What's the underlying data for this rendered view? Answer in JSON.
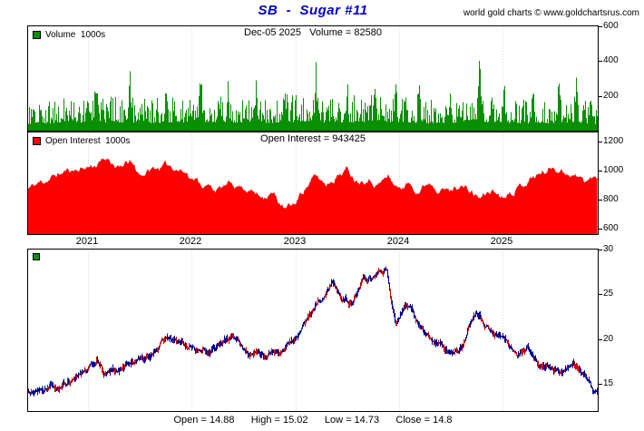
{
  "header": {
    "title": "SB  -  Sugar #11",
    "credit": "world gold charts © www.goldchartsrus.com"
  },
  "panels": {
    "volume": {
      "legend": "Volume  1000s",
      "header": "Dec-05 2025   Volume = 82580"
    },
    "open_interest": {
      "legend": "Open Interest  1000s",
      "header": "Open Interest = 943425"
    },
    "price": {
      "footer": "Open = 14.88      High = 15.02      Low = 14.73      Close = 14.8"
    }
  },
  "chart_data": [
    {
      "type": "bar",
      "name": "Volume",
      "unit": "1000s",
      "color": "#089000",
      "ylim": [
        0,
        600
      ],
      "yticks": [
        200,
        400,
        600
      ],
      "x": [
        2020.42,
        2020.7,
        2021.0,
        2021.3,
        2021.6,
        2021.9,
        2022.2,
        2022.5,
        2022.8,
        2023.1,
        2023.4,
        2023.7,
        2024.0,
        2024.3,
        2024.6,
        2024.9,
        2025.2,
        2025.5,
        2025.8,
        2025.92
      ],
      "values": [
        110,
        120,
        140,
        130,
        125,
        135,
        140,
        120,
        130,
        145,
        130,
        140,
        135,
        120,
        125,
        140,
        120,
        115,
        125,
        83
      ],
      "spikes": [
        [
          2021.08,
          260
        ],
        [
          2021.4,
          180
        ],
        [
          2021.75,
          200
        ],
        [
          2022.08,
          290
        ],
        [
          2022.35,
          240
        ],
        [
          2022.62,
          180
        ],
        [
          2022.9,
          210
        ],
        [
          2023.2,
          260
        ],
        [
          2023.5,
          180
        ],
        [
          2023.77,
          240
        ],
        [
          2023.97,
          280
        ],
        [
          2024.2,
          220
        ],
        [
          2024.5,
          170
        ],
        [
          2024.78,
          390
        ],
        [
          2025.02,
          250
        ],
        [
          2025.3,
          170
        ],
        [
          2025.55,
          210
        ],
        [
          2025.72,
          280
        ],
        [
          2025.86,
          180
        ]
      ],
      "last_date": "Dec-05 2025",
      "last_value": 82.58
    },
    {
      "type": "area",
      "name": "Open Interest",
      "unit": "1000s",
      "color": "#FF0000",
      "ylim": [
        560,
        1260
      ],
      "yticks": [
        600,
        800,
        1000,
        1200
      ],
      "x": [
        2020.42,
        2020.6,
        2020.8,
        2020.95,
        2021.1,
        2021.2,
        2021.3,
        2021.4,
        2021.5,
        2021.65,
        2021.8,
        2021.95,
        2022.1,
        2022.25,
        2022.4,
        2022.55,
        2022.65,
        2022.78,
        2022.9,
        2023.0,
        2023.1,
        2023.2,
        2023.3,
        2023.4,
        2023.5,
        2023.6,
        2023.7,
        2023.8,
        2023.9,
        2024.0,
        2024.1,
        2024.2,
        2024.3,
        2024.4,
        2024.5,
        2024.6,
        2024.7,
        2024.8,
        2024.9,
        2025.0,
        2025.1,
        2025.2,
        2025.3,
        2025.4,
        2025.5,
        2025.6,
        2025.7,
        2025.8,
        2025.92
      ],
      "values": [
        870,
        930,
        990,
        1010,
        1040,
        1080,
        1000,
        1050,
        960,
        1010,
        1030,
        980,
        900,
        860,
        900,
        870,
        820,
        840,
        720,
        760,
        880,
        950,
        900,
        960,
        1000,
        930,
        950,
        900,
        950,
        870,
        900,
        860,
        920,
        880,
        850,
        900,
        840,
        800,
        860,
        820,
        860,
        900,
        950,
        980,
        1020,
        990,
        960,
        920,
        943
      ],
      "last_value": 943.425
    },
    {
      "type": "ohlc-line",
      "name": "SB Sugar #11 price",
      "colors": [
        "#00008B",
        "#CC0000"
      ],
      "ylim": [
        12,
        30
      ],
      "yticks": [
        15,
        20,
        25,
        30
      ],
      "xticks": [
        2021,
        2022,
        2023,
        2024,
        2025
      ],
      "x": [
        2020.42,
        2020.6,
        2020.75,
        2020.9,
        2021.0,
        2021.08,
        2021.15,
        2021.3,
        2021.45,
        2021.6,
        2021.7,
        2021.85,
        2021.95,
        2022.1,
        2022.25,
        2022.4,
        2022.55,
        2022.7,
        2022.85,
        2023.0,
        2023.1,
        2023.25,
        2023.35,
        2023.45,
        2023.55,
        2023.65,
        2023.78,
        2023.88,
        2023.97,
        2024.05,
        2024.15,
        2024.3,
        2024.45,
        2024.55,
        2024.65,
        2024.75,
        2024.85,
        2024.95,
        2025.05,
        2025.15,
        2025.25,
        2025.35,
        2025.45,
        2025.55,
        2025.65,
        2025.72,
        2025.8,
        2025.88,
        2025.92
      ],
      "values": [
        14.2,
        14.8,
        15.1,
        15.6,
        16.2,
        17.8,
        16.1,
        16.8,
        17.9,
        18.2,
        19.8,
        20.3,
        19.0,
        18.4,
        19.5,
        19.8,
        18.3,
        17.9,
        18.8,
        20.3,
        21.5,
        24.5,
        26.3,
        24.8,
        23.9,
        26.8,
        27.4,
        28.1,
        21.8,
        23.8,
        22.5,
        19.6,
        19.2,
        18.5,
        19.8,
        23.2,
        21.8,
        20.6,
        19.3,
        18.5,
        19.0,
        17.6,
        17.2,
        16.2,
        16.6,
        16.9,
        15.9,
        14.3,
        14.8
      ],
      "ohlc": {
        "open": 14.88,
        "high": 15.02,
        "low": 14.73,
        "close": 14.8
      }
    }
  ]
}
